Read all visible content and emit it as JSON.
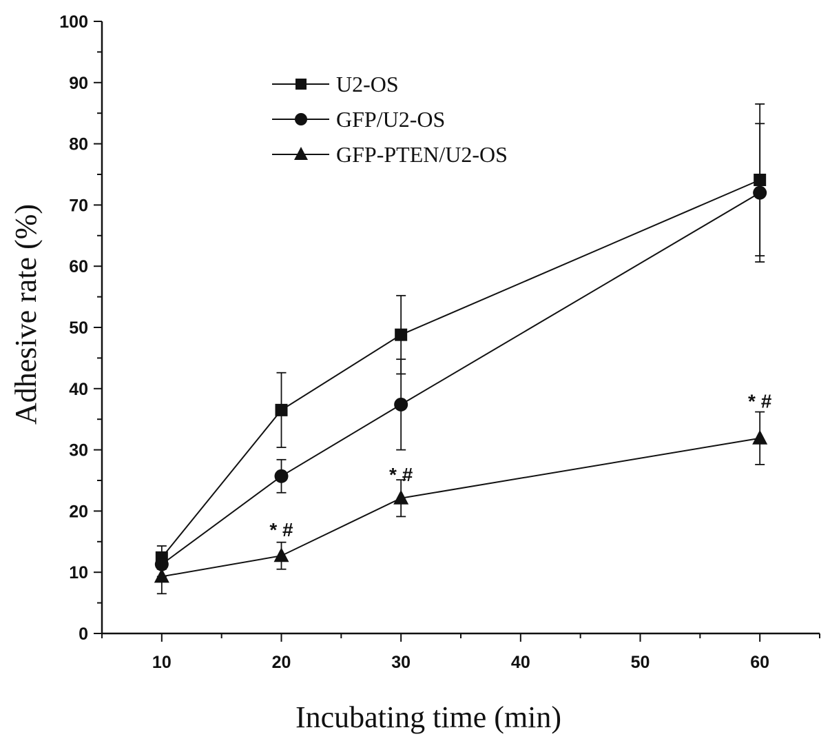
{
  "chart_data": {
    "type": "line",
    "title": "",
    "xlabel": "Incubating time (min)",
    "ylabel": "Adhesive rate (%)",
    "xlim": [
      5,
      65
    ],
    "ylim": [
      0,
      100
    ],
    "xticks": [
      10,
      20,
      30,
      40,
      50,
      60
    ],
    "yticks": [
      0,
      10,
      20,
      30,
      40,
      50,
      60,
      70,
      80,
      90,
      100
    ],
    "grid": false,
    "legend_position": "top-left",
    "x": [
      10,
      20,
      30,
      60
    ],
    "series": [
      {
        "name": "U2-OS",
        "marker": "square",
        "values": [
          12.4,
          36.5,
          48.8,
          74.1
        ],
        "errors": [
          1.9,
          6.1,
          6.4,
          12.4
        ]
      },
      {
        "name": "GFP/U2-OS",
        "marker": "circle",
        "values": [
          11.3,
          25.7,
          37.4,
          72.0
        ],
        "errors": [
          2.0,
          2.7,
          7.4,
          11.3
        ]
      },
      {
        "name": "GFP-PTEN/U2-OS",
        "marker": "triangle",
        "values": [
          9.3,
          12.7,
          22.1,
          31.9
        ],
        "errors": [
          2.8,
          2.2,
          3.0,
          4.3
        ]
      }
    ],
    "annotations": [
      {
        "x": 20,
        "y": 17,
        "text": "* #"
      },
      {
        "x": 30,
        "y": 26,
        "text": "* #"
      },
      {
        "x": 60,
        "y": 38,
        "text": "* #"
      }
    ],
    "color": "#111111"
  }
}
